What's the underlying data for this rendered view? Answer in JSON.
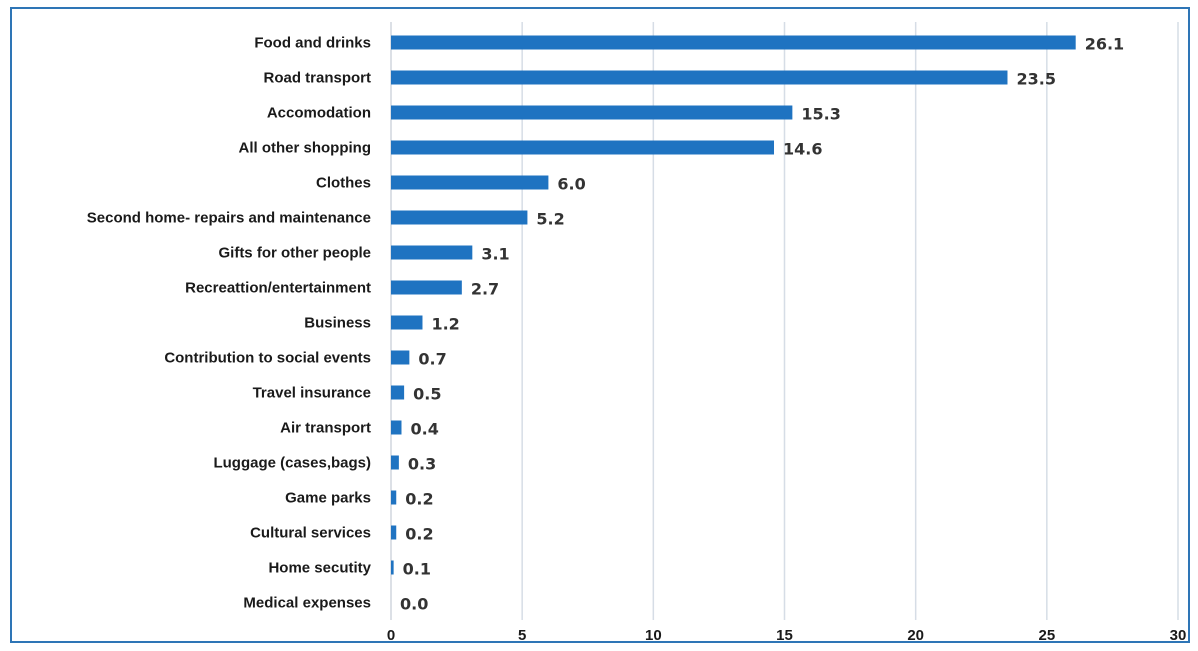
{
  "chart_data": {
    "type": "bar",
    "orientation": "horizontal",
    "categories": [
      "Food and drinks",
      "Road transport",
      "Accomodation",
      "All other shopping",
      "Clothes",
      "Second home- repairs and maintenance",
      "Gifts for other people",
      "Recreattion/entertainment",
      "Business",
      "Contribution to social events",
      "Travel insurance",
      "Air transport",
      "Luggage (cases,bags)",
      "Game parks",
      "Cultural services",
      "Home secutity",
      "Medical expenses"
    ],
    "values": [
      26.1,
      23.5,
      15.3,
      14.6,
      6.0,
      5.2,
      3.1,
      2.7,
      1.2,
      0.7,
      0.5,
      0.4,
      0.3,
      0.2,
      0.2,
      0.1,
      0.0
    ],
    "value_labels": [
      "26.1",
      "23.5",
      "15.3",
      "14.6",
      "6.0",
      "5.2",
      "3.1",
      "2.7",
      "1.2",
      "0.7",
      "0.5",
      "0.4",
      "0.3",
      "0.2",
      "0.2",
      "0.1",
      "0.0"
    ],
    "xticks": [
      "0",
      "5",
      "10",
      "15",
      "20",
      "25",
      "30"
    ],
    "xlim": [
      0,
      30
    ],
    "grid": "vertical",
    "legend": "none",
    "title": "",
    "xlabel": "",
    "ylabel": "",
    "colors": {
      "bar": "#1f73c1",
      "grid": "#d6dde6",
      "frame": "#2e75b6"
    }
  }
}
